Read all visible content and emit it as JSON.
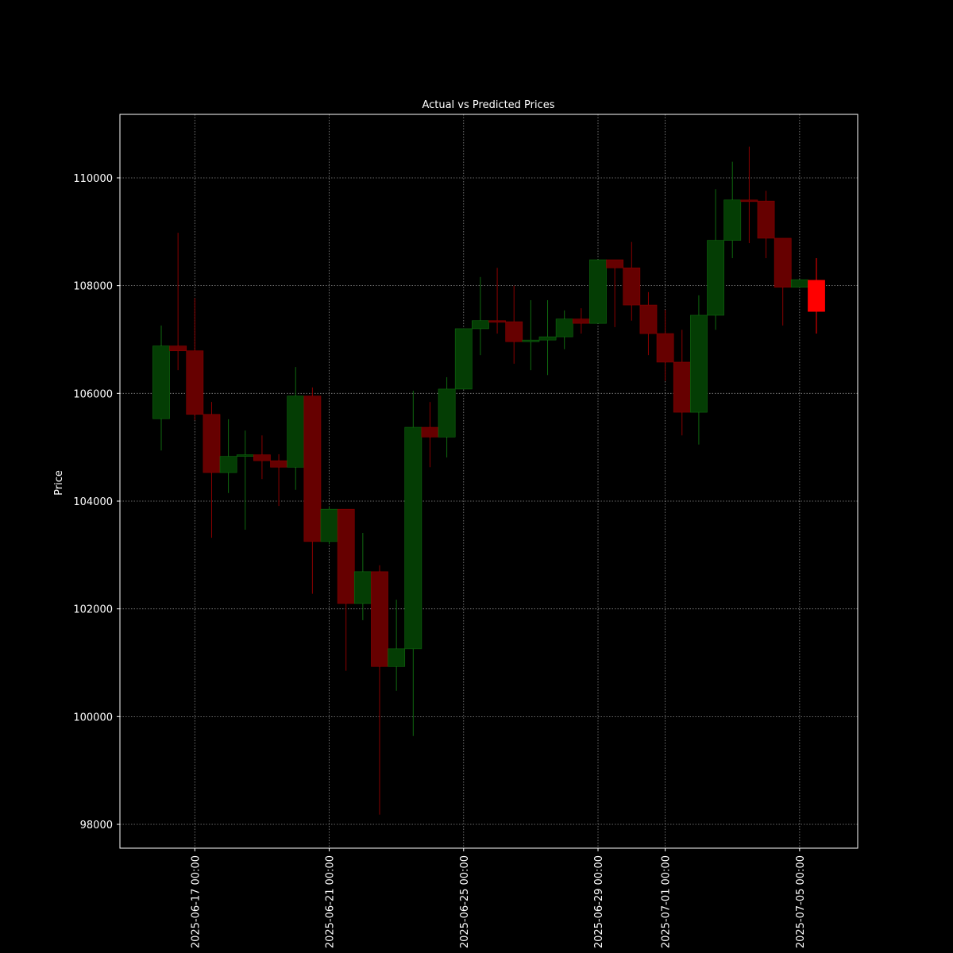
{
  "chart_data": {
    "type": "candlestick",
    "title": "Actual vs Predicted Prices",
    "y_label": "Price",
    "x": [
      "2025-06-16 00:00",
      "2025-06-16 12:00",
      "2025-06-17 00:00",
      "2025-06-17 12:00",
      "2025-06-18 00:00",
      "2025-06-18 12:00",
      "2025-06-19 00:00",
      "2025-06-19 12:00",
      "2025-06-20 00:00",
      "2025-06-20 12:00",
      "2025-06-21 00:00",
      "2025-06-21 12:00",
      "2025-06-22 00:00",
      "2025-06-22 12:00",
      "2025-06-23 00:00",
      "2025-06-23 12:00",
      "2025-06-24 00:00",
      "2025-06-24 12:00",
      "2025-06-25 00:00",
      "2025-06-25 12:00",
      "2025-06-26 00:00",
      "2025-06-26 12:00",
      "2025-06-27 00:00",
      "2025-06-27 12:00",
      "2025-06-28 00:00",
      "2025-06-28 12:00",
      "2025-06-29 00:00",
      "2025-06-29 12:00",
      "2025-06-30 00:00",
      "2025-06-30 12:00",
      "2025-07-01 00:00",
      "2025-07-01 12:00",
      "2025-07-02 00:00",
      "2025-07-02 12:00",
      "2025-07-03 00:00",
      "2025-07-03 12:00",
      "2025-07-04 00:00",
      "2025-07-04 12:00",
      "2025-07-05 00:00"
    ],
    "open": [
      105530,
      106880,
      106790,
      105610,
      104530,
      104830,
      104860,
      104750,
      104630,
      105950,
      103250,
      103850,
      102100,
      102690,
      100930,
      101260,
      105370,
      105190,
      106080,
      107200,
      107350,
      107330,
      106960,
      106990,
      107050,
      107380,
      107300,
      108480,
      108330,
      107640,
      107110,
      106580,
      105650,
      107450,
      108840,
      109590,
      109570,
      108880,
      107970
    ],
    "high": [
      107260,
      108980,
      107770,
      105840,
      105520,
      105310,
      105220,
      104870,
      106490,
      106110,
      103900,
      103850,
      103410,
      102810,
      102170,
      106050,
      105840,
      106300,
      107200,
      108160,
      108330,
      108000,
      107730,
      107730,
      107540,
      107580,
      108480,
      108480,
      108810,
      107880,
      107550,
      107180,
      107820,
      109790,
      110300,
      110580,
      109760,
      108880,
      108110
    ],
    "low": [
      104940,
      106430,
      105500,
      103320,
      104150,
      103470,
      104410,
      103910,
      104210,
      102280,
      103200,
      100850,
      101790,
      98180,
      100480,
      99640,
      104630,
      104810,
      106080,
      106710,
      107110,
      106550,
      106430,
      106340,
      106820,
      107110,
      107300,
      107230,
      107350,
      106710,
      106230,
      105220,
      105050,
      107180,
      108510,
      108790,
      108510,
      107260,
      107970
    ],
    "close": [
      106880,
      106790,
      105610,
      104530,
      104830,
      104860,
      104750,
      104630,
      105950,
      103250,
      103850,
      102100,
      102690,
      100930,
      101260,
      105370,
      105190,
      106080,
      107200,
      107350,
      107320,
      106960,
      106990,
      107050,
      107380,
      107300,
      108480,
      108330,
      107640,
      107110,
      106580,
      105650,
      107450,
      108840,
      109590,
      109560,
      108880,
      107970,
      108110
    ],
    "up_color": "#043d04",
    "down_color": "#660000",
    "predicted": {
      "x": "2025-07-05 12:00",
      "open": 108100,
      "high": 108510,
      "low": 107110,
      "close": 107520,
      "color": "#ff0000"
    },
    "xlim": [
      "2025-06-14 18:30",
      "2025-07-06 17:30"
    ],
    "xticks": [
      "2025-06-17 00:00",
      "2025-06-21 00:00",
      "2025-06-25 00:00",
      "2025-06-29 00:00",
      "2025-07-01 00:00",
      "2025-07-05 00:00"
    ],
    "ylim": [
      97558,
      111179
    ],
    "yticks": [
      98000,
      100000,
      102000,
      104000,
      106000,
      108000,
      110000
    ],
    "grid": true
  }
}
